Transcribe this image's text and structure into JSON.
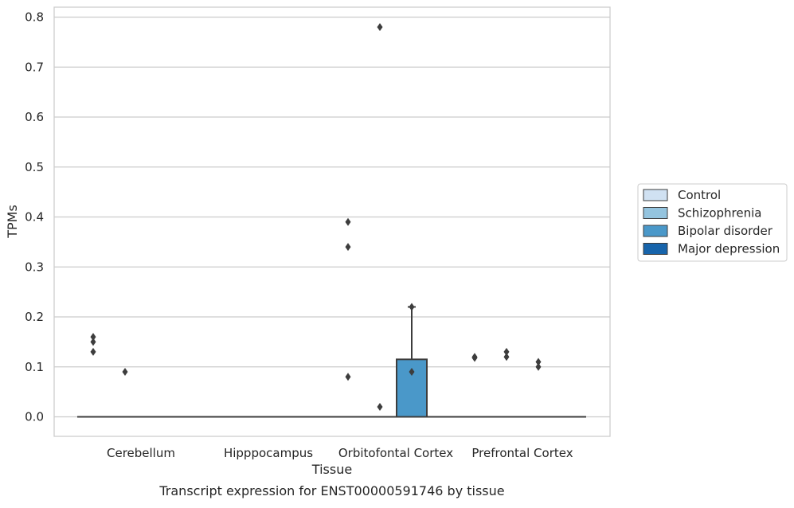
{
  "caption": "Transcript expression for ENST00000591746 by tissue",
  "chart_data": {
    "type": "box",
    "xlabel": "Tissue",
    "ylabel": "TPMs",
    "ylim": [
      -0.04,
      0.82
    ],
    "yticks": [
      0.0,
      0.1,
      0.2,
      0.3,
      0.4,
      0.5,
      0.6,
      0.7,
      0.8
    ],
    "ytick_labels": [
      "0.0",
      "0.1",
      "0.2",
      "0.3",
      "0.4",
      "0.5",
      "0.6",
      "0.7",
      "0.8"
    ],
    "grid": true,
    "legend_position": "right",
    "categories": [
      "Cerebellum",
      "Hipppocampus",
      "Orbitofontal Cortex",
      "Prefrontal Cortex"
    ],
    "series": [
      {
        "name": "Control",
        "color": "#d0e1f2",
        "boxes": [
          {
            "q1": 0,
            "median": 0,
            "q3": 0,
            "whisker_low": 0,
            "whisker_high": 0,
            "outliers": [
              0.13,
              0.15,
              0.16
            ]
          },
          {
            "q1": 0,
            "median": 0,
            "q3": 0,
            "whisker_low": 0,
            "whisker_high": 0,
            "outliers": []
          },
          {
            "q1": 0,
            "median": 0,
            "q3": 0,
            "whisker_low": 0,
            "whisker_high": 0,
            "outliers": [
              0.08,
              0.34,
              0.39
            ]
          },
          {
            "q1": 0,
            "median": 0,
            "q3": 0,
            "whisker_low": 0,
            "whisker_high": 0,
            "outliers": [
              0.12,
              0.118
            ]
          }
        ]
      },
      {
        "name": "Schizophrenia",
        "color": "#94c4df",
        "boxes": [
          {
            "q1": 0,
            "median": 0,
            "q3": 0,
            "whisker_low": 0,
            "whisker_high": 0,
            "outliers": [
              0.09
            ]
          },
          {
            "q1": 0,
            "median": 0,
            "q3": 0,
            "whisker_low": 0,
            "whisker_high": 0,
            "outliers": []
          },
          {
            "q1": 0,
            "median": 0,
            "q3": 0,
            "whisker_low": 0,
            "whisker_high": 0,
            "outliers": [
              0.02,
              0.78
            ]
          },
          {
            "q1": 0,
            "median": 0,
            "q3": 0,
            "whisker_low": 0,
            "whisker_high": 0,
            "outliers": [
              0.12,
              0.13
            ]
          }
        ]
      },
      {
        "name": "Bipolar disorder",
        "color": "#4a98c9",
        "boxes": [
          {
            "q1": 0,
            "median": 0,
            "q3": 0,
            "whisker_low": 0,
            "whisker_high": 0,
            "outliers": []
          },
          {
            "q1": 0,
            "median": 0,
            "q3": 0,
            "whisker_low": 0,
            "whisker_high": 0,
            "outliers": []
          },
          {
            "q1": 0,
            "median": 0,
            "q3": 0.115,
            "whisker_low": 0,
            "whisker_high": 0.22,
            "outliers": [
              0.09,
              0.22
            ]
          },
          {
            "q1": 0,
            "median": 0,
            "q3": 0,
            "whisker_low": 0,
            "whisker_high": 0,
            "outliers": [
              0.1,
              0.11
            ]
          }
        ]
      },
      {
        "name": "Major depression",
        "color": "#1764ab",
        "boxes": [
          {
            "q1": 0,
            "median": 0,
            "q3": 0,
            "whisker_low": 0,
            "whisker_high": 0,
            "outliers": []
          },
          {
            "q1": 0,
            "median": 0,
            "q3": 0,
            "whisker_low": 0,
            "whisker_high": 0,
            "outliers": []
          },
          {
            "q1": 0,
            "median": 0,
            "q3": 0,
            "whisker_low": 0,
            "whisker_high": 0,
            "outliers": []
          },
          {
            "q1": 0,
            "median": 0,
            "q3": 0,
            "whisker_low": 0,
            "whisker_high": 0,
            "outliers": []
          }
        ]
      }
    ]
  }
}
